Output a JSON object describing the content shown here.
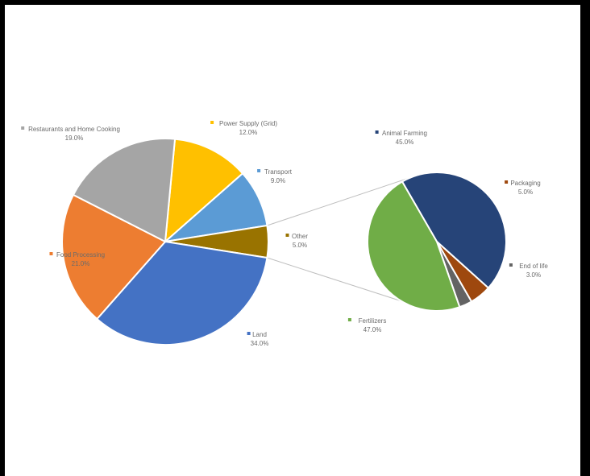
{
  "chart_data": {
    "type": "pie",
    "title": "",
    "main_pie": {
      "slices": [
        {
          "label": "Power Supply (Grid)",
          "value_text": "12.0%",
          "value": 12,
          "color": "#ffc000"
        },
        {
          "label": "Transport",
          "value_text": "9.0%",
          "value": 9,
          "color": "#5b9bd5"
        },
        {
          "label": "Other",
          "value_text": "5.0%",
          "value": 5,
          "color": "#997300"
        },
        {
          "label": "Land",
          "value_text": "34.0%",
          "value": 34,
          "color": "#4472c4"
        },
        {
          "label": "Food Processing",
          "value_text": "21.0%",
          "value": 21,
          "color": "#ed7d31"
        },
        {
          "label": "Restaurants and Home Cooking",
          "value_text": "19.0%",
          "value": 19,
          "color": "#a5a5a5"
        }
      ]
    },
    "secondary_pie": {
      "slices": [
        {
          "label": "Animal Farming",
          "value_text": "45.0%",
          "value": 45,
          "color": "#264478"
        },
        {
          "label": "Packaging",
          "value_text": "5.0%",
          "value": 5,
          "color": "#9e480e"
        },
        {
          "label": "End of life",
          "value_text": "3.0%",
          "value": 3,
          "color": "#636363"
        },
        {
          "label": "Fertilizers",
          "value_text": "47.0%",
          "value": 47,
          "color": "#70ad47"
        }
      ]
    }
  }
}
